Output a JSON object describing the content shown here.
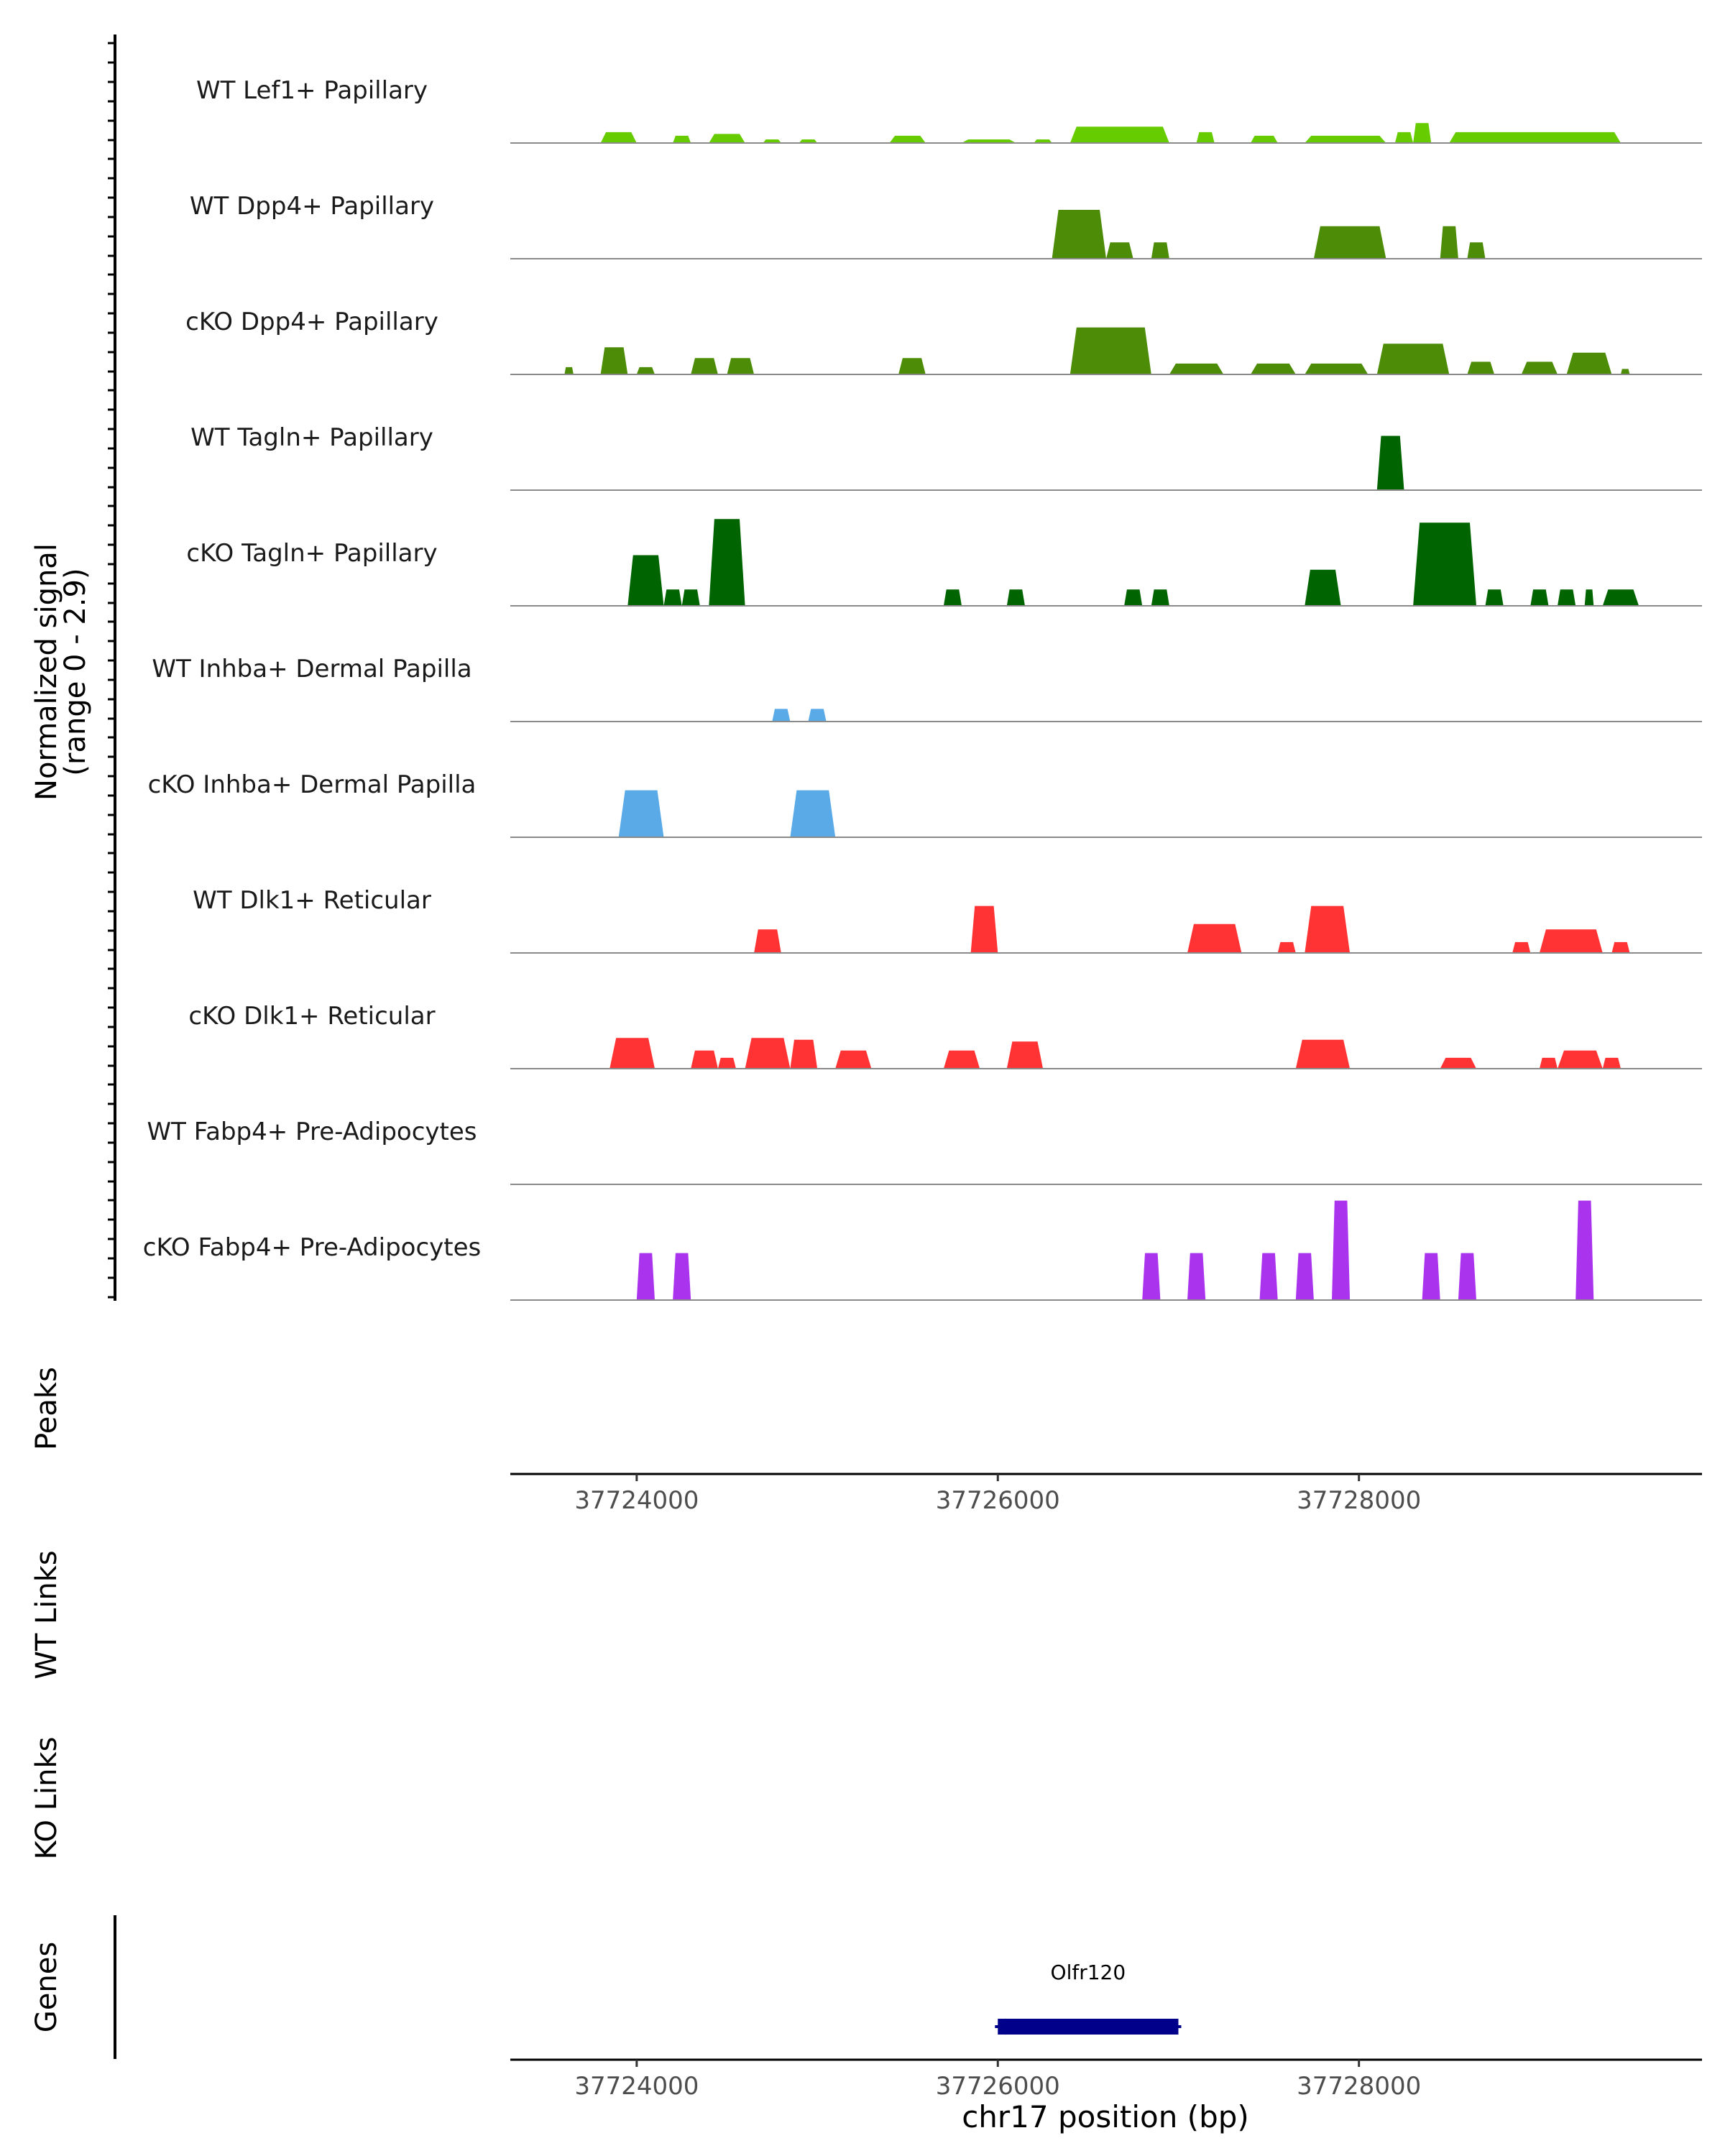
{
  "chart_data": {
    "type": "area",
    "title": "",
    "chromosome": "chr17",
    "xlabel": "chr17 position (bp)",
    "xlim": [
      37723300,
      37729900
    ],
    "xticks": [
      37724000,
      37726000,
      37728000
    ],
    "xtick_labels": [
      "37724000",
      "37726000",
      "37728000"
    ],
    "ylabel_line1": "Normalized signal",
    "ylabel_line2": "(range 0 - 2.9)",
    "ylim": [
      0,
      2.9
    ],
    "coverage_tracks": [
      {
        "name": "WT Lef1+ Papillary",
        "color": "#66cc00",
        "peaks": [
          [
            37723800,
            37724000,
            0.3
          ],
          [
            37724200,
            37724300,
            0.2
          ],
          [
            37724400,
            37724600,
            0.25
          ],
          [
            37724700,
            37724800,
            0.1
          ],
          [
            37724900,
            37725000,
            0.1
          ],
          [
            37725400,
            37725600,
            0.2
          ],
          [
            37725800,
            37726100,
            0.1
          ],
          [
            37726200,
            37726300,
            0.1
          ],
          [
            37726400,
            37726950,
            0.45
          ],
          [
            37727100,
            37727200,
            0.3
          ],
          [
            37727400,
            37727550,
            0.2
          ],
          [
            37727700,
            37728150,
            0.2
          ],
          [
            37728200,
            37728300,
            0.3
          ],
          [
            37728300,
            37728400,
            0.55
          ],
          [
            37728500,
            37729450,
            0.3
          ]
        ]
      },
      {
        "name": "WT Dpp4+ Papillary",
        "color": "#4d8c06",
        "peaks": [
          [
            37726300,
            37726600,
            1.35
          ],
          [
            37726600,
            37726750,
            0.45
          ],
          [
            37726850,
            37726950,
            0.45
          ],
          [
            37727750,
            37728150,
            0.9
          ],
          [
            37728450,
            37728550,
            0.9
          ],
          [
            37728600,
            37728700,
            0.45
          ]
        ]
      },
      {
        "name": "cKO Dpp4+ Papillary",
        "color": "#4d8c06",
        "peaks": [
          [
            37723600,
            37723650,
            0.2
          ],
          [
            37723800,
            37723950,
            0.75
          ],
          [
            37724000,
            37724100,
            0.2
          ],
          [
            37724300,
            37724450,
            0.45
          ],
          [
            37724500,
            37724650,
            0.45
          ],
          [
            37725450,
            37725600,
            0.45
          ],
          [
            37726400,
            37726850,
            1.3
          ],
          [
            37726950,
            37727250,
            0.3
          ],
          [
            37727400,
            37727650,
            0.3
          ],
          [
            37727700,
            37728050,
            0.3
          ],
          [
            37728100,
            37728500,
            0.85
          ],
          [
            37728600,
            37728750,
            0.35
          ],
          [
            37728900,
            37729100,
            0.35
          ],
          [
            37729150,
            37729400,
            0.6
          ],
          [
            37729450,
            37729500,
            0.15
          ]
        ]
      },
      {
        "name": "WT Tagln+ Papillary",
        "color": "#006400",
        "peaks": [
          [
            37728100,
            37728250,
            1.5
          ]
        ]
      },
      {
        "name": "cKO Tagln+ Papillary",
        "color": "#006400",
        "peaks": [
          [
            37723950,
            37724150,
            1.4
          ],
          [
            37724150,
            37724250,
            0.45
          ],
          [
            37724250,
            37724350,
            0.45
          ],
          [
            37724400,
            37724600,
            2.4
          ],
          [
            37725700,
            37725800,
            0.45
          ],
          [
            37726050,
            37726150,
            0.45
          ],
          [
            37726700,
            37726800,
            0.45
          ],
          [
            37726850,
            37726950,
            0.45
          ],
          [
            37727700,
            37727900,
            1.0
          ],
          [
            37728300,
            37728650,
            2.3
          ],
          [
            37728700,
            37728800,
            0.45
          ],
          [
            37728950,
            37729050,
            0.45
          ],
          [
            37729100,
            37729200,
            0.45
          ],
          [
            37729250,
            37729300,
            0.45
          ],
          [
            37729350,
            37729550,
            0.45
          ]
        ]
      },
      {
        "name": "WT Inhba+ Dermal Papilla",
        "color": "#5aaae8",
        "peaks": [
          [
            37724750,
            37724850,
            0.35
          ],
          [
            37724950,
            37725050,
            0.35
          ]
        ]
      },
      {
        "name": "cKO Inhba+ Dermal Papilla",
        "color": "#5aaae8",
        "peaks": [
          [
            37723900,
            37724150,
            1.3
          ],
          [
            37724850,
            37725100,
            1.3
          ]
        ]
      },
      {
        "name": "WT Dlk1+ Reticular",
        "color": "#ff3333",
        "peaks": [
          [
            37724650,
            37724800,
            0.65
          ],
          [
            37725850,
            37726000,
            1.3
          ],
          [
            37727050,
            37727350,
            0.8
          ],
          [
            37727550,
            37727650,
            0.3
          ],
          [
            37727700,
            37727950,
            1.3
          ],
          [
            37728850,
            37728950,
            0.3
          ],
          [
            37729000,
            37729350,
            0.65
          ],
          [
            37729400,
            37729500,
            0.3
          ]
        ]
      },
      {
        "name": "cKO Dlk1+ Reticular",
        "color": "#ff3333",
        "peaks": [
          [
            37723850,
            37724100,
            0.85
          ],
          [
            37724300,
            37724450,
            0.5
          ],
          [
            37724450,
            37724550,
            0.3
          ],
          [
            37724600,
            37724850,
            0.85
          ],
          [
            37724850,
            37725000,
            0.8
          ],
          [
            37725100,
            37725300,
            0.5
          ],
          [
            37725700,
            37725900,
            0.5
          ],
          [
            37726050,
            37726250,
            0.75
          ],
          [
            37727650,
            37727950,
            0.8
          ],
          [
            37728450,
            37728650,
            0.3
          ],
          [
            37729000,
            37729100,
            0.3
          ],
          [
            37729100,
            37729350,
            0.5
          ],
          [
            37729350,
            37729450,
            0.3
          ]
        ]
      },
      {
        "name": "WT Fabp4+ Pre-Adipocytes",
        "color": "#aa33ee",
        "peaks": []
      },
      {
        "name": "cKO Fabp4+ Pre-Adipocytes",
        "color": "#aa33ee",
        "peaks": [
          [
            37724000,
            37724100,
            1.3
          ],
          [
            37724200,
            37724300,
            1.3
          ],
          [
            37726800,
            37726900,
            1.3
          ],
          [
            37727050,
            37727150,
            1.3
          ],
          [
            37727450,
            37727550,
            1.3
          ],
          [
            37727650,
            37727750,
            1.3
          ],
          [
            37727850,
            37727950,
            2.75
          ],
          [
            37728350,
            37728450,
            1.3
          ],
          [
            37728550,
            37728650,
            1.3
          ],
          [
            37729200,
            37729300,
            2.75
          ]
        ]
      }
    ],
    "peaks_track_label": "Peaks",
    "wt_links_label": "WT Links",
    "ko_links_label": "KO Links",
    "genes_track_label": "Genes",
    "genes": [
      {
        "name": "Olfr120",
        "start": 37726000,
        "end": 37727000,
        "strand": "-",
        "color": "#00008b"
      }
    ]
  }
}
